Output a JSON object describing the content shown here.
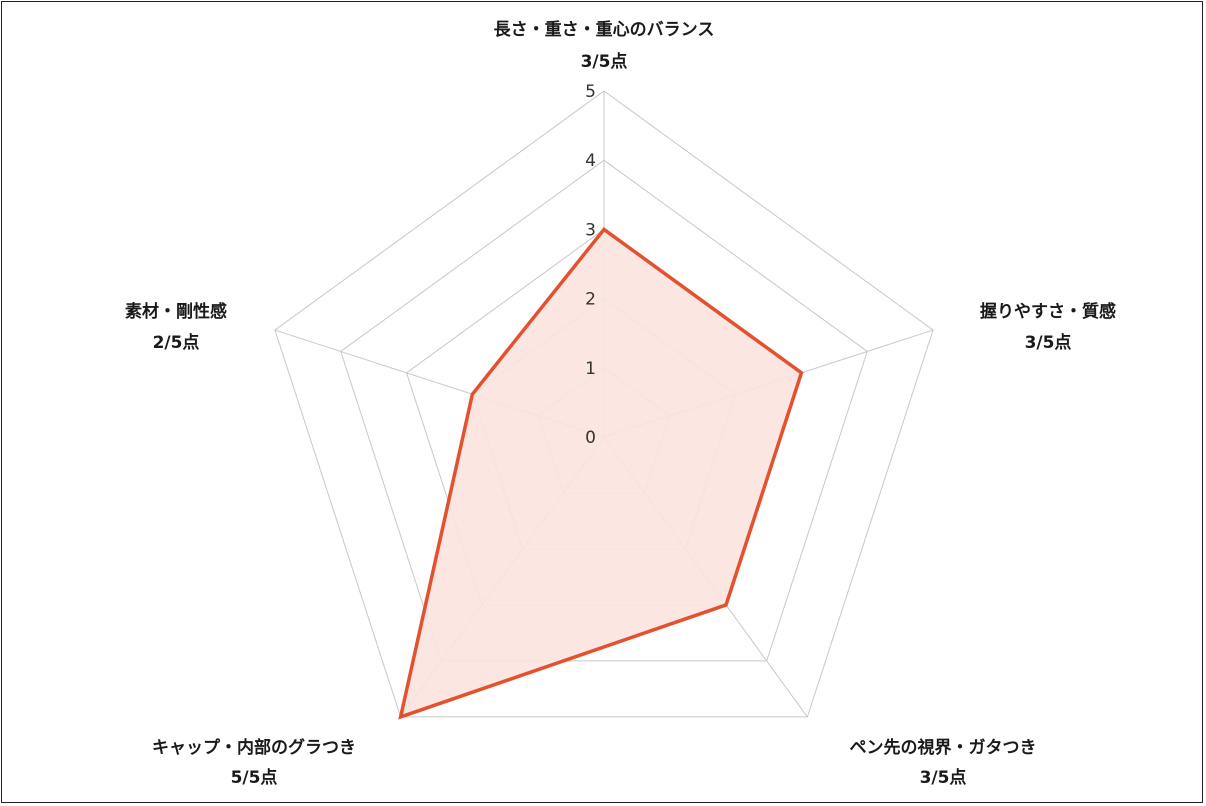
{
  "chart_data": {
    "type": "radar",
    "max": 5,
    "ticks": [
      "0",
      "1",
      "2",
      "3",
      "4",
      "5"
    ],
    "categories": [
      {
        "label": "長さ・重さ・重心のバランス",
        "score_label": "3/5点",
        "value": 3
      },
      {
        "label": "握りやすさ・質感",
        "score_label": "3/5点",
        "value": 3
      },
      {
        "label": "ペン先の視界・ガタつき",
        "score_label": "3/5点",
        "value": 3
      },
      {
        "label": "キャップ・内部のグラつき",
        "score_label": "5/5点",
        "value": 5
      },
      {
        "label": "素材・剛性感",
        "score_label": "2/5点",
        "value": 2
      }
    ],
    "colors": {
      "stroke": "#e4512f",
      "fill": "#fbe3df",
      "grid": "#c8c8c8"
    }
  }
}
